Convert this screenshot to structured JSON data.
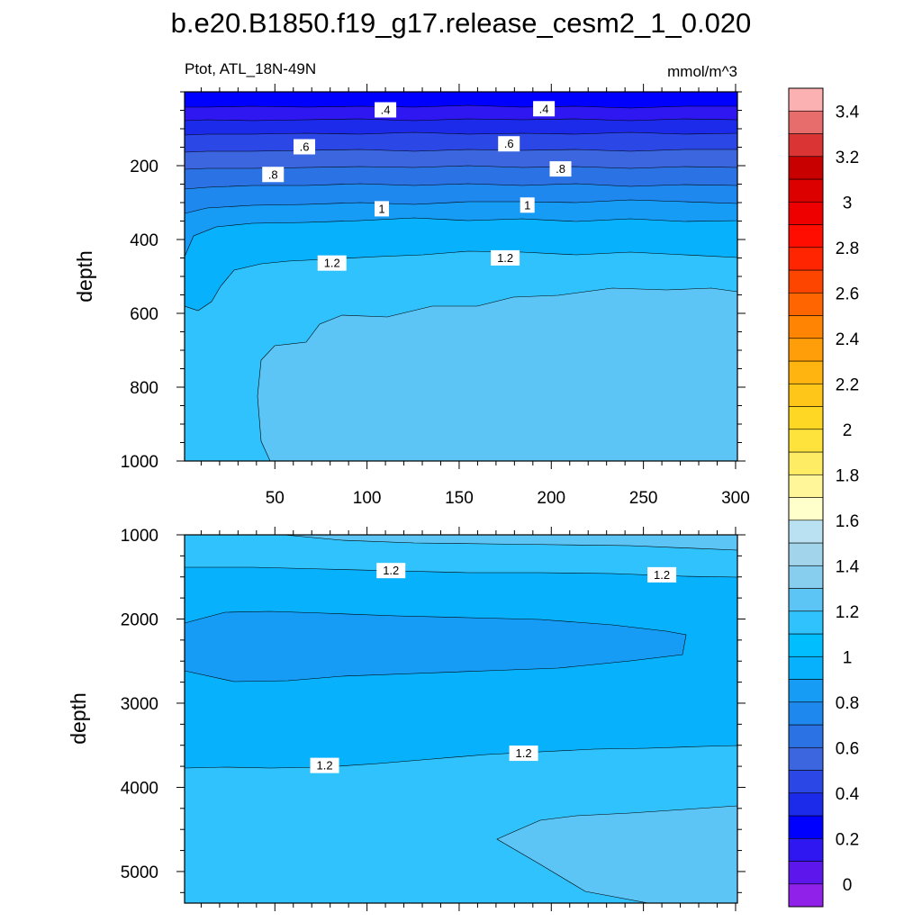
{
  "chart_data": [
    {
      "type": "contour",
      "title": "b.e20.B1850.f19_g17.release_cesm2_1_0.020",
      "left_label": "Ptot, ATL_18N-49N",
      "right_label": "mmol/m^3",
      "xlabel": "",
      "ylabel": "depth",
      "xlim": [
        1,
        301
      ],
      "ylim": [
        1000,
        0
      ],
      "x_ticks": [
        50,
        100,
        150,
        200,
        250,
        300
      ],
      "y_ticks": [
        200,
        400,
        600,
        800,
        1000
      ],
      "contour_labels": [
        {
          "text": ".4",
          "x": 110,
          "y": 50
        },
        {
          "text": ".4",
          "x": 196,
          "y": 47
        },
        {
          "text": ".6",
          "x": 66,
          "y": 150
        },
        {
          "text": ".6",
          "x": 177,
          "y": 142
        },
        {
          "text": ".8",
          "x": 49,
          "y": 225
        },
        {
          "text": ".8",
          "x": 205,
          "y": 210
        },
        {
          "text": "1",
          "x": 108,
          "y": 318
        },
        {
          "text": "1",
          "x": 187,
          "y": 308
        },
        {
          "text": "1.2",
          "x": 81,
          "y": 465
        },
        {
          "text": "1.2",
          "x": 175,
          "y": 451
        }
      ]
    },
    {
      "type": "contour",
      "xlabel": "",
      "ylabel": "depth",
      "xlim": [
        1,
        301
      ],
      "ylim": [
        5375,
        1000
      ],
      "y_ticks": [
        1000,
        2000,
        3000,
        4000,
        5000
      ],
      "contour_labels": [
        {
          "text": "1.2",
          "x": 113,
          "y": 1430
        },
        {
          "text": "1.2",
          "x": 260,
          "y": 1480
        },
        {
          "text": "1.2",
          "x": 77,
          "y": 3745
        },
        {
          "text": "1.2",
          "x": 185,
          "y": 3600
        }
      ]
    }
  ],
  "colorbar": {
    "labels": [
      "0",
      "0.2",
      "0.4",
      "0.6",
      "0.8",
      "1",
      "1.2",
      "1.4",
      "1.6",
      "1.8",
      "2",
      "2.2",
      "2.4",
      "2.6",
      "2.8",
      "3",
      "3.2",
      "3.4"
    ],
    "colors": [
      "#8f21e8",
      "#5d17ec",
      "#2e17f0",
      "#0000ff",
      "#1b2be9",
      "#2b47e5",
      "#3b66e0",
      "#2b73e4",
      "#1e88ef",
      "#179cf6",
      "#07b1fc",
      "#01bfff",
      "#30c2fc",
      "#5dc5f6",
      "#87cdee",
      "#a2d5ec",
      "#b9e1f2",
      "#ffffcc",
      "#fff69a",
      "#feec65",
      "#fee33d",
      "#fed725",
      "#fec618",
      "#ffb40f",
      "#ff9e08",
      "#ff8404",
      "#ff6601",
      "#fe4500",
      "#fe2500",
      "#fe0d00",
      "#ef0000",
      "#dd0000",
      "#c90000",
      "#da3434",
      "#e76d6d",
      "#fbb1b1"
    ]
  }
}
